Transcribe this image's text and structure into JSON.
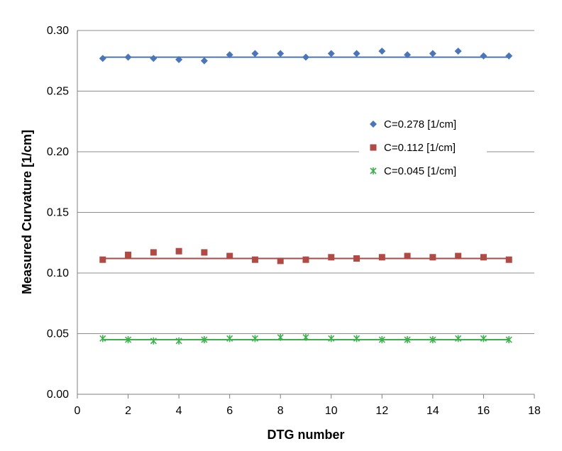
{
  "chart_data": {
    "type": "scatter",
    "xlabel": "DTG number",
    "ylabel": "Measured Curvature [1/cm]",
    "xlim": [
      0,
      18
    ],
    "ylim": [
      0,
      0.3
    ],
    "x_ticks": [
      0,
      2,
      4,
      6,
      8,
      10,
      12,
      14,
      16,
      18
    ],
    "y_ticks": [
      "0.00",
      "0.05",
      "0.10",
      "0.15",
      "0.20",
      "0.25",
      "0.30"
    ],
    "grid": "horizontal",
    "legend_position": "right",
    "x": [
      1,
      2,
      3,
      4,
      5,
      6,
      7,
      8,
      9,
      10,
      11,
      12,
      13,
      14,
      15,
      16,
      17
    ],
    "series": [
      {
        "name": "C=0.278 [1/cm]",
        "marker": "diamond",
        "color": "#4a76b8",
        "fit": 0.278,
        "values": [
          0.277,
          0.278,
          0.277,
          0.276,
          0.275,
          0.28,
          0.281,
          0.281,
          0.278,
          0.281,
          0.281,
          0.283,
          0.28,
          0.281,
          0.283,
          0.279,
          0.279
        ]
      },
      {
        "name": "C=0.112 [1/cm]",
        "marker": "square",
        "color": "#b04a45",
        "fit": 0.112,
        "values": [
          0.111,
          0.115,
          0.117,
          0.118,
          0.117,
          0.114,
          0.111,
          0.11,
          0.111,
          0.113,
          0.112,
          0.113,
          0.114,
          0.113,
          0.114,
          0.113,
          0.111
        ]
      },
      {
        "name": "C=0.045 [1/cm]",
        "marker": "asterisk",
        "color": "#3cb04a",
        "fit": 0.045,
        "values": [
          0.046,
          0.045,
          0.044,
          0.044,
          0.045,
          0.046,
          0.046,
          0.047,
          0.047,
          0.046,
          0.046,
          0.045,
          0.045,
          0.045,
          0.046,
          0.046,
          0.045
        ]
      }
    ]
  }
}
